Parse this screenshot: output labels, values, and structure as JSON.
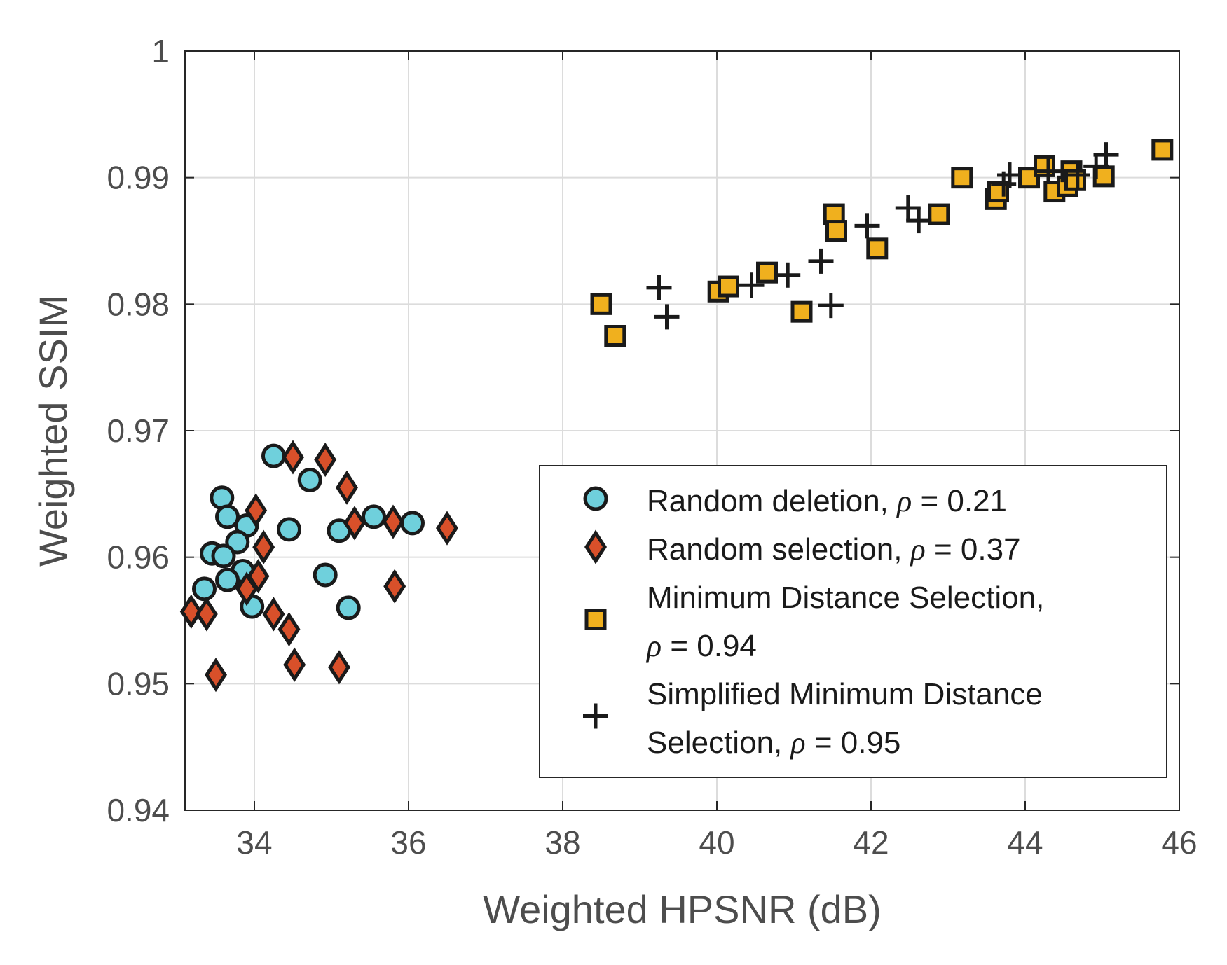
{
  "chart_data": {
    "type": "scatter",
    "xlabel": "Weighted HPSNR (dB)",
    "ylabel": "Weighted SSIM",
    "xlim": [
      33.1,
      46
    ],
    "ylim": [
      0.94,
      1
    ],
    "xticks": [
      34,
      36,
      38,
      40,
      42,
      44,
      46
    ],
    "yticks": [
      0.94,
      0.95,
      0.96,
      0.97,
      0.98,
      0.99,
      1
    ],
    "xtick_labels": [
      "34",
      "36",
      "38",
      "40",
      "42",
      "44",
      "46"
    ],
    "ytick_labels": [
      "0.94",
      "0.95",
      "0.96",
      "0.97",
      "0.98",
      "0.99",
      "1"
    ],
    "grid": true,
    "legend_position": "lower-right",
    "series": [
      {
        "name_lines": [
          [
            "Random deletion, ",
            "ρ",
            " = 0.21"
          ]
        ],
        "marker": "circle",
        "color": "#6fd0dc",
        "points": [
          [
            34.25,
            0.968
          ],
          [
            34.72,
            0.9661
          ],
          [
            33.58,
            0.9647
          ],
          [
            33.65,
            0.9632
          ],
          [
            33.9,
            0.9625
          ],
          [
            34.45,
            0.9622
          ],
          [
            35.1,
            0.9621
          ],
          [
            35.55,
            0.9632
          ],
          [
            36.05,
            0.9627
          ],
          [
            33.78,
            0.9612
          ],
          [
            33.45,
            0.9603
          ],
          [
            33.6,
            0.9601
          ],
          [
            33.85,
            0.9589
          ],
          [
            34.92,
            0.9586
          ],
          [
            33.65,
            0.9582
          ],
          [
            33.35,
            0.9575
          ],
          [
            33.97,
            0.9561
          ],
          [
            35.22,
            0.956
          ]
        ]
      },
      {
        "name_lines": [
          [
            "Random selection, ",
            "ρ",
            " = 0.37"
          ]
        ],
        "marker": "diamond",
        "color": "#d8502a",
        "points": [
          [
            34.5,
            0.9679
          ],
          [
            34.92,
            0.9677
          ],
          [
            35.2,
            0.9655
          ],
          [
            34.02,
            0.9637
          ],
          [
            35.3,
            0.9627
          ],
          [
            35.8,
            0.9628
          ],
          [
            36.5,
            0.9623
          ],
          [
            34.12,
            0.9608
          ],
          [
            34.05,
            0.9585
          ],
          [
            33.9,
            0.9575
          ],
          [
            35.82,
            0.9577
          ],
          [
            33.18,
            0.9557
          ],
          [
            33.38,
            0.9555
          ],
          [
            34.25,
            0.9555
          ],
          [
            34.45,
            0.9543
          ],
          [
            34.52,
            0.9515
          ],
          [
            35.1,
            0.9513
          ],
          [
            33.5,
            0.9507
          ]
        ]
      },
      {
        "name_lines": [
          [
            "Minimum Distance Selection,"
          ],
          [
            "ρ",
            " = 0.94"
          ]
        ],
        "marker": "square",
        "color": "#f0b01e",
        "points": [
          [
            38.5,
            0.98
          ],
          [
            38.68,
            0.9775
          ],
          [
            40.02,
            0.981
          ],
          [
            40.15,
            0.9814
          ],
          [
            40.65,
            0.9825
          ],
          [
            41.1,
            0.9794
          ],
          [
            41.52,
            0.9871
          ],
          [
            41.55,
            0.9858
          ],
          [
            42.08,
            0.9844
          ],
          [
            42.88,
            0.9871
          ],
          [
            43.18,
            0.99
          ],
          [
            43.62,
            0.9883
          ],
          [
            43.65,
            0.9889
          ],
          [
            44.05,
            0.99
          ],
          [
            44.25,
            0.9909
          ],
          [
            44.38,
            0.9889
          ],
          [
            44.55,
            0.9893
          ],
          [
            44.6,
            0.9905
          ],
          [
            44.65,
            0.9898
          ],
          [
            45.02,
            0.9901
          ],
          [
            45.78,
            0.9922
          ]
        ]
      },
      {
        "name_lines": [
          [
            "Simplified Minimum Distance"
          ],
          [
            "Selection, ",
            "ρ",
            " = 0.95"
          ]
        ],
        "marker": "plus",
        "color": "#1a1a1a",
        "points": [
          [
            39.25,
            0.9813
          ],
          [
            39.35,
            0.979
          ],
          [
            40.45,
            0.9815
          ],
          [
            40.92,
            0.9823
          ],
          [
            41.35,
            0.9834
          ],
          [
            41.48,
            0.9799
          ],
          [
            41.95,
            0.9862
          ],
          [
            42.48,
            0.9876
          ],
          [
            42.62,
            0.9866
          ],
          [
            43.72,
            0.9895
          ],
          [
            43.8,
            0.9902
          ],
          [
            44.3,
            0.9905
          ],
          [
            44.68,
            0.9902
          ],
          [
            45.05,
            0.9918
          ],
          [
            44.92,
            0.9909
          ]
        ]
      }
    ]
  }
}
